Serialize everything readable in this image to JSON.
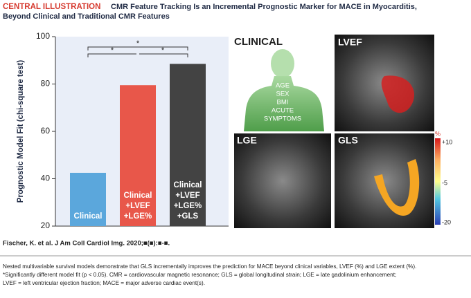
{
  "header": {
    "label": "CENTRAL ILLUSTRATION",
    "title": [
      "CMR Feature Tracking Is an Incremental Prognostic Marker for MACE in Myocarditis,",
      "Beyond Clinical and Traditional CMR Features"
    ]
  },
  "chart_data": {
    "type": "bar",
    "y_label": "Prognostic Model Fit (chi-square test)",
    "categories": [
      [
        "Clinical"
      ],
      [
        "Clinical",
        "+LVEF",
        "+LGE%"
      ],
      [
        "Clinical",
        "+LVEF",
        "+LGE%",
        "+GLS"
      ]
    ],
    "values": [
      42.5,
      79.5,
      88.5
    ],
    "colors": [
      "#5ba7dc",
      "#e8574a",
      "#434343"
    ],
    "ylim": [
      20,
      100
    ],
    "yticks": [
      20,
      40,
      60,
      80,
      100
    ],
    "annotations": [
      "*",
      "*",
      "*"
    ]
  },
  "panels": {
    "clinical": {
      "title": "CLINICAL",
      "items": [
        "AGE",
        "SEX",
        "BMI",
        "ACUTE",
        "SYMPTOMS"
      ]
    },
    "lvef": "LVEF",
    "lge": "LGE",
    "gls": "GLS",
    "colorbar": [
      "%",
      "+10",
      "-5",
      "-20"
    ]
  },
  "citation": "Fischer, K. et al. J Am Coll Cardiol Img. 2020;■(■):■-■.",
  "caption": [
    "Nested multivariable survival models demonstrate that GLS incrementally improves the prediction for MACE beyond clinical variables, LVEF (%) and LGE extent (%).",
    "*Significantly different model fit (p < 0.05). CMR = cardiovascular magnetic resonance; GLS = global longitudinal strain; LGE = late gadolinium enhancement;",
    "LVEF = left ventricular ejection fraction; MACE = major adverse cardiac event(s)."
  ]
}
